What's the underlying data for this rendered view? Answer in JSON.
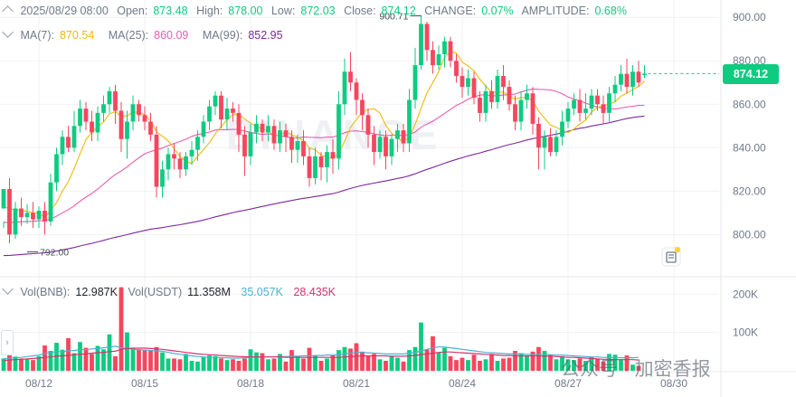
{
  "header": {
    "date": "2025/08/29 08:00",
    "open_label": "Open:",
    "open": "873.48",
    "high_label": "High:",
    "high": "878.00",
    "low_label": "Low:",
    "low": "872.03",
    "close_label": "Close:",
    "close": "874.12",
    "change_label": "CHANGE:",
    "change": "0.07%",
    "amplitude_label": "AMPLITUDE:",
    "amplitude": "0.68%"
  },
  "ma": {
    "ma7_label": "MA(7):",
    "ma7": "870.54",
    "ma7_color": "#f0b90b",
    "ma25_label": "MA(25):",
    "ma25": "860.09",
    "ma25_color": "#e95cb2",
    "ma99_label": "MA(99):",
    "ma99": "852.95",
    "ma99_color": "#7c2a9c"
  },
  "volume_header": {
    "bnb_label": "Vol(BNB):",
    "bnb": "12.987K",
    "usdt_label": "Vol(USDT)",
    "usdt": "11.358M",
    "ma1": "35.057K",
    "ma1_color": "#4cb2d4",
    "ma2": "28.435K",
    "ma2_color": "#d6336c"
  },
  "current_price": "874.12",
  "annotations": {
    "high_marker": "900.71",
    "low_marker": "792.00"
  },
  "watermark_brand": "BINANCE",
  "watermark_text": "公众号 · 加密香报",
  "colors": {
    "up": "#0ecb81",
    "down": "#f6465d",
    "grid": "#f0f1f3",
    "axis_text": "#707a8a"
  },
  "chart_data": {
    "type": "candlestick",
    "price_axis": {
      "ticks": [
        "900.00",
        "880.00",
        "860.00",
        "840.00",
        "820.00",
        "800.00"
      ],
      "range": [
        781,
        908
      ]
    },
    "volume_axis": {
      "ticks": [
        "200K",
        "100K"
      ],
      "range": [
        0,
        236
      ]
    },
    "x_ticks": [
      {
        "label": "08/12",
        "index": 6
      },
      {
        "label": "08/15",
        "index": 24
      },
      {
        "label": "08/18",
        "index": 42
      },
      {
        "label": "08/21",
        "index": 60
      },
      {
        "label": "08/24",
        "index": 78
      },
      {
        "label": "08/27",
        "index": 96
      },
      {
        "label": "08/30",
        "index": 114
      }
    ],
    "candles": [
      [
        812,
        821,
        806,
        803
      ],
      [
        821,
        800,
        826,
        796
      ],
      [
        800,
        812,
        815,
        798
      ],
      [
        812,
        808,
        817,
        804
      ],
      [
        808,
        810,
        814,
        805
      ],
      [
        810,
        807,
        815,
        803
      ],
      [
        807,
        811,
        813,
        803
      ],
      [
        811,
        806,
        815,
        800
      ],
      [
        806,
        824,
        828,
        804
      ],
      [
        824,
        837,
        840,
        820
      ],
      [
        837,
        845,
        848,
        832
      ],
      [
        845,
        840,
        850,
        838
      ],
      [
        840,
        850,
        857,
        838
      ],
      [
        850,
        858,
        862,
        847
      ],
      [
        858,
        852,
        861,
        848
      ],
      [
        852,
        847,
        857,
        843
      ],
      [
        847,
        856,
        859,
        843
      ],
      [
        856,
        860,
        864,
        852
      ],
      [
        860,
        866,
        868,
        856
      ],
      [
        866,
        857,
        869,
        851
      ],
      [
        857,
        844,
        861,
        838
      ],
      [
        844,
        852,
        857,
        835
      ],
      [
        852,
        860,
        864,
        848
      ],
      [
        860,
        855,
        862,
        852
      ],
      [
        855,
        852,
        859,
        848
      ],
      [
        852,
        846,
        856,
        843
      ],
      [
        846,
        822,
        850,
        817
      ],
      [
        822,
        830,
        834,
        817
      ],
      [
        830,
        837,
        840,
        825
      ],
      [
        837,
        835,
        842,
        830
      ],
      [
        835,
        830,
        838,
        826
      ],
      [
        830,
        836,
        838,
        827
      ],
      [
        836,
        839,
        843,
        832
      ],
      [
        839,
        845,
        848,
        834
      ],
      [
        845,
        852,
        855,
        842
      ],
      [
        852,
        859,
        862,
        848
      ],
      [
        859,
        864,
        866,
        855
      ],
      [
        864,
        853,
        866,
        849
      ],
      [
        853,
        858,
        863,
        848
      ],
      [
        858,
        856,
        861,
        852
      ],
      [
        856,
        846,
        860,
        838
      ],
      [
        846,
        836,
        850,
        827
      ],
      [
        836,
        847,
        851,
        832
      ],
      [
        847,
        851,
        855,
        842
      ],
      [
        851,
        847,
        853,
        843
      ],
      [
        847,
        850,
        855,
        843
      ],
      [
        850,
        842,
        853,
        839
      ],
      [
        842,
        848,
        852,
        838
      ],
      [
        848,
        845,
        851,
        838
      ],
      [
        845,
        839,
        848,
        833
      ],
      [
        839,
        843,
        846,
        833
      ],
      [
        843,
        836,
        848,
        832
      ],
      [
        836,
        826,
        840,
        822
      ],
      [
        826,
        836,
        840,
        823
      ],
      [
        836,
        831,
        838,
        825
      ],
      [
        831,
        838,
        841,
        824
      ],
      [
        838,
        835,
        844,
        828
      ],
      [
        835,
        860,
        866,
        830
      ],
      [
        860,
        875,
        881,
        855
      ],
      [
        875,
        870,
        884,
        866
      ],
      [
        870,
        862,
        872,
        855
      ],
      [
        862,
        855,
        865,
        848
      ],
      [
        855,
        846,
        858,
        840
      ],
      [
        846,
        838,
        850,
        832
      ],
      [
        838,
        845,
        848,
        835
      ],
      [
        845,
        836,
        848,
        830
      ],
      [
        836,
        844,
        846,
        832
      ],
      [
        844,
        848,
        851,
        838
      ],
      [
        848,
        842,
        851,
        838
      ],
      [
        842,
        862,
        867,
        838
      ],
      [
        862,
        878,
        886,
        858
      ],
      [
        878,
        897,
        901,
        876
      ],
      [
        897,
        885,
        898,
        880
      ],
      [
        885,
        878,
        889,
        874
      ],
      [
        878,
        883,
        887,
        876
      ],
      [
        883,
        889,
        891,
        877
      ],
      [
        889,
        880,
        891,
        877
      ],
      [
        880,
        873,
        883,
        870
      ],
      [
        873,
        868,
        877,
        863
      ],
      [
        868,
        872,
        876,
        864
      ],
      [
        872,
        863,
        875,
        860
      ],
      [
        863,
        856,
        866,
        852
      ],
      [
        856,
        866,
        869,
        852
      ],
      [
        866,
        861,
        871,
        858
      ],
      [
        861,
        873,
        876,
        858
      ],
      [
        873,
        868,
        878,
        862
      ],
      [
        868,
        860,
        871,
        857
      ],
      [
        860,
        852,
        864,
        848
      ],
      [
        852,
        862,
        866,
        848
      ],
      [
        862,
        865,
        869,
        858
      ],
      [
        865,
        851,
        868,
        846
      ],
      [
        851,
        840,
        854,
        830
      ],
      [
        840,
        845,
        848,
        830
      ],
      [
        845,
        838,
        849,
        836
      ],
      [
        838,
        845,
        848,
        836
      ],
      [
        845,
        852,
        857,
        841
      ],
      [
        852,
        858,
        861,
        849
      ],
      [
        858,
        862,
        865,
        855
      ],
      [
        862,
        856,
        867,
        852
      ],
      [
        856,
        858,
        865,
        853
      ],
      [
        858,
        864,
        867,
        855
      ],
      [
        864,
        860,
        867,
        857
      ],
      [
        860,
        856,
        864,
        851
      ],
      [
        856,
        865,
        868,
        852
      ],
      [
        865,
        869,
        873,
        861
      ],
      [
        869,
        874,
        878,
        866
      ],
      [
        874,
        868,
        881,
        865
      ],
      [
        868,
        875,
        878,
        864
      ],
      [
        875,
        870,
        880,
        868
      ],
      [
        873.48,
        874.12,
        878,
        872.03
      ]
    ],
    "volumes": [
      [
        32,
        22
      ],
      [
        65,
        48
      ],
      [
        37,
        24
      ],
      [
        32,
        20
      ],
      [
        30,
        19
      ],
      [
        28,
        18
      ],
      [
        38,
        24
      ],
      [
        66,
        50
      ],
      [
        52,
        38
      ],
      [
        73,
        55
      ],
      [
        55,
        45
      ],
      [
        85,
        70
      ],
      [
        46,
        36
      ],
      [
        75,
        64
      ],
      [
        60,
        49
      ],
      [
        44,
        34
      ],
      [
        65,
        54
      ],
      [
        56,
        46
      ],
      [
        95,
        83
      ],
      [
        38,
        28
      ],
      [
        218,
        196
      ],
      [
        100,
        88
      ],
      [
        58,
        50
      ],
      [
        56,
        47
      ],
      [
        54,
        48
      ],
      [
        54,
        45
      ],
      [
        62,
        53
      ],
      [
        48,
        40
      ],
      [
        32,
        25
      ],
      [
        32,
        24
      ],
      [
        30,
        22
      ],
      [
        44,
        35
      ],
      [
        26,
        19
      ],
      [
        24,
        18
      ],
      [
        35,
        30
      ],
      [
        40,
        34
      ],
      [
        38,
        32
      ],
      [
        32,
        26
      ],
      [
        28,
        22
      ],
      [
        30,
        24
      ],
      [
        26,
        19
      ],
      [
        32,
        26
      ],
      [
        56,
        50
      ],
      [
        48,
        42
      ],
      [
        46,
        38
      ],
      [
        30,
        24
      ],
      [
        32,
        26
      ],
      [
        44,
        35
      ],
      [
        24,
        18
      ],
      [
        54,
        45
      ],
      [
        38,
        30
      ],
      [
        32,
        26
      ],
      [
        60,
        50
      ],
      [
        40,
        32
      ],
      [
        26,
        20
      ],
      [
        32,
        25
      ],
      [
        40,
        33
      ],
      [
        54,
        44
      ],
      [
        62,
        55
      ],
      [
        58,
        50
      ],
      [
        72,
        66
      ],
      [
        50,
        42
      ],
      [
        38,
        30
      ],
      [
        44,
        36
      ],
      [
        30,
        22
      ],
      [
        26,
        18
      ],
      [
        38,
        30
      ],
      [
        34,
        26
      ],
      [
        24,
        18
      ],
      [
        54,
        46
      ],
      [
        62,
        54
      ],
      [
        126,
        114
      ],
      [
        56,
        50
      ],
      [
        90,
        80
      ],
      [
        48,
        40
      ],
      [
        60,
        52
      ],
      [
        38,
        30
      ],
      [
        28,
        22
      ],
      [
        34,
        26
      ],
      [
        28,
        22
      ],
      [
        42,
        35
      ],
      [
        26,
        18
      ],
      [
        30,
        22
      ],
      [
        44,
        35
      ],
      [
        26,
        18
      ],
      [
        32,
        24
      ],
      [
        34,
        26
      ],
      [
        52,
        42
      ],
      [
        46,
        38
      ],
      [
        38,
        30
      ],
      [
        50,
        40
      ],
      [
        62,
        54
      ],
      [
        52,
        44
      ],
      [
        42,
        34
      ],
      [
        30,
        22
      ],
      [
        38,
        30
      ],
      [
        30,
        22
      ],
      [
        28,
        20
      ],
      [
        32,
        24
      ],
      [
        26,
        18
      ],
      [
        36,
        28
      ],
      [
        30,
        22
      ],
      [
        24,
        16
      ],
      [
        44,
        36
      ],
      [
        42,
        34
      ],
      [
        30,
        22
      ],
      [
        40,
        32
      ],
      [
        16,
        10
      ],
      [
        13,
        10
      ]
    ],
    "volume_ma1": [
      31,
      33,
      34,
      35,
      37,
      39,
      41,
      45,
      48,
      50,
      50,
      52,
      53,
      55,
      55,
      57,
      58,
      60,
      62,
      64,
      60,
      58,
      56,
      55,
      54,
      53,
      52,
      51,
      48,
      45,
      43,
      41,
      39,
      37,
      36,
      35,
      35,
      34,
      34,
      33,
      33,
      34,
      35,
      35,
      36,
      36,
      37,
      37,
      37,
      38,
      38,
      39,
      39,
      40,
      40,
      41,
      41,
      42,
      44,
      46,
      48,
      48,
      47,
      46,
      45,
      44,
      44,
      44,
      44,
      46,
      48,
      52,
      56,
      60,
      62,
      62,
      60,
      58,
      56,
      54,
      52,
      50,
      48,
      47,
      46,
      45,
      44,
      44,
      44,
      43,
      43,
      43,
      43,
      42,
      41,
      41,
      40,
      39,
      38,
      37,
      36,
      36,
      35,
      35,
      35,
      34,
      34,
      34,
      35
    ],
    "volume_ma2": [
      27,
      28,
      29,
      30,
      31,
      32,
      33,
      35,
      36,
      38,
      39,
      40,
      42,
      43,
      44,
      46,
      47,
      48,
      50,
      51,
      56,
      58,
      59,
      59,
      59,
      58,
      57,
      56,
      54,
      52,
      50,
      48,
      46,
      44,
      43,
      42,
      41,
      40,
      39,
      38,
      37,
      37,
      36,
      36,
      36,
      36,
      36,
      36,
      35,
      35,
      35,
      35,
      35,
      35,
      35,
      35,
      35,
      35,
      36,
      37,
      38,
      39,
      39,
      39,
      39,
      39,
      38,
      38,
      38,
      39,
      40,
      42,
      44,
      46,
      48,
      49,
      49,
      48,
      47,
      46,
      45,
      44,
      43,
      42,
      41,
      40,
      40,
      39,
      39,
      39,
      39,
      39,
      38,
      38,
      37,
      36,
      35,
      35,
      34,
      33,
      32,
      31,
      30,
      30,
      29,
      29,
      29,
      29,
      28
    ]
  }
}
